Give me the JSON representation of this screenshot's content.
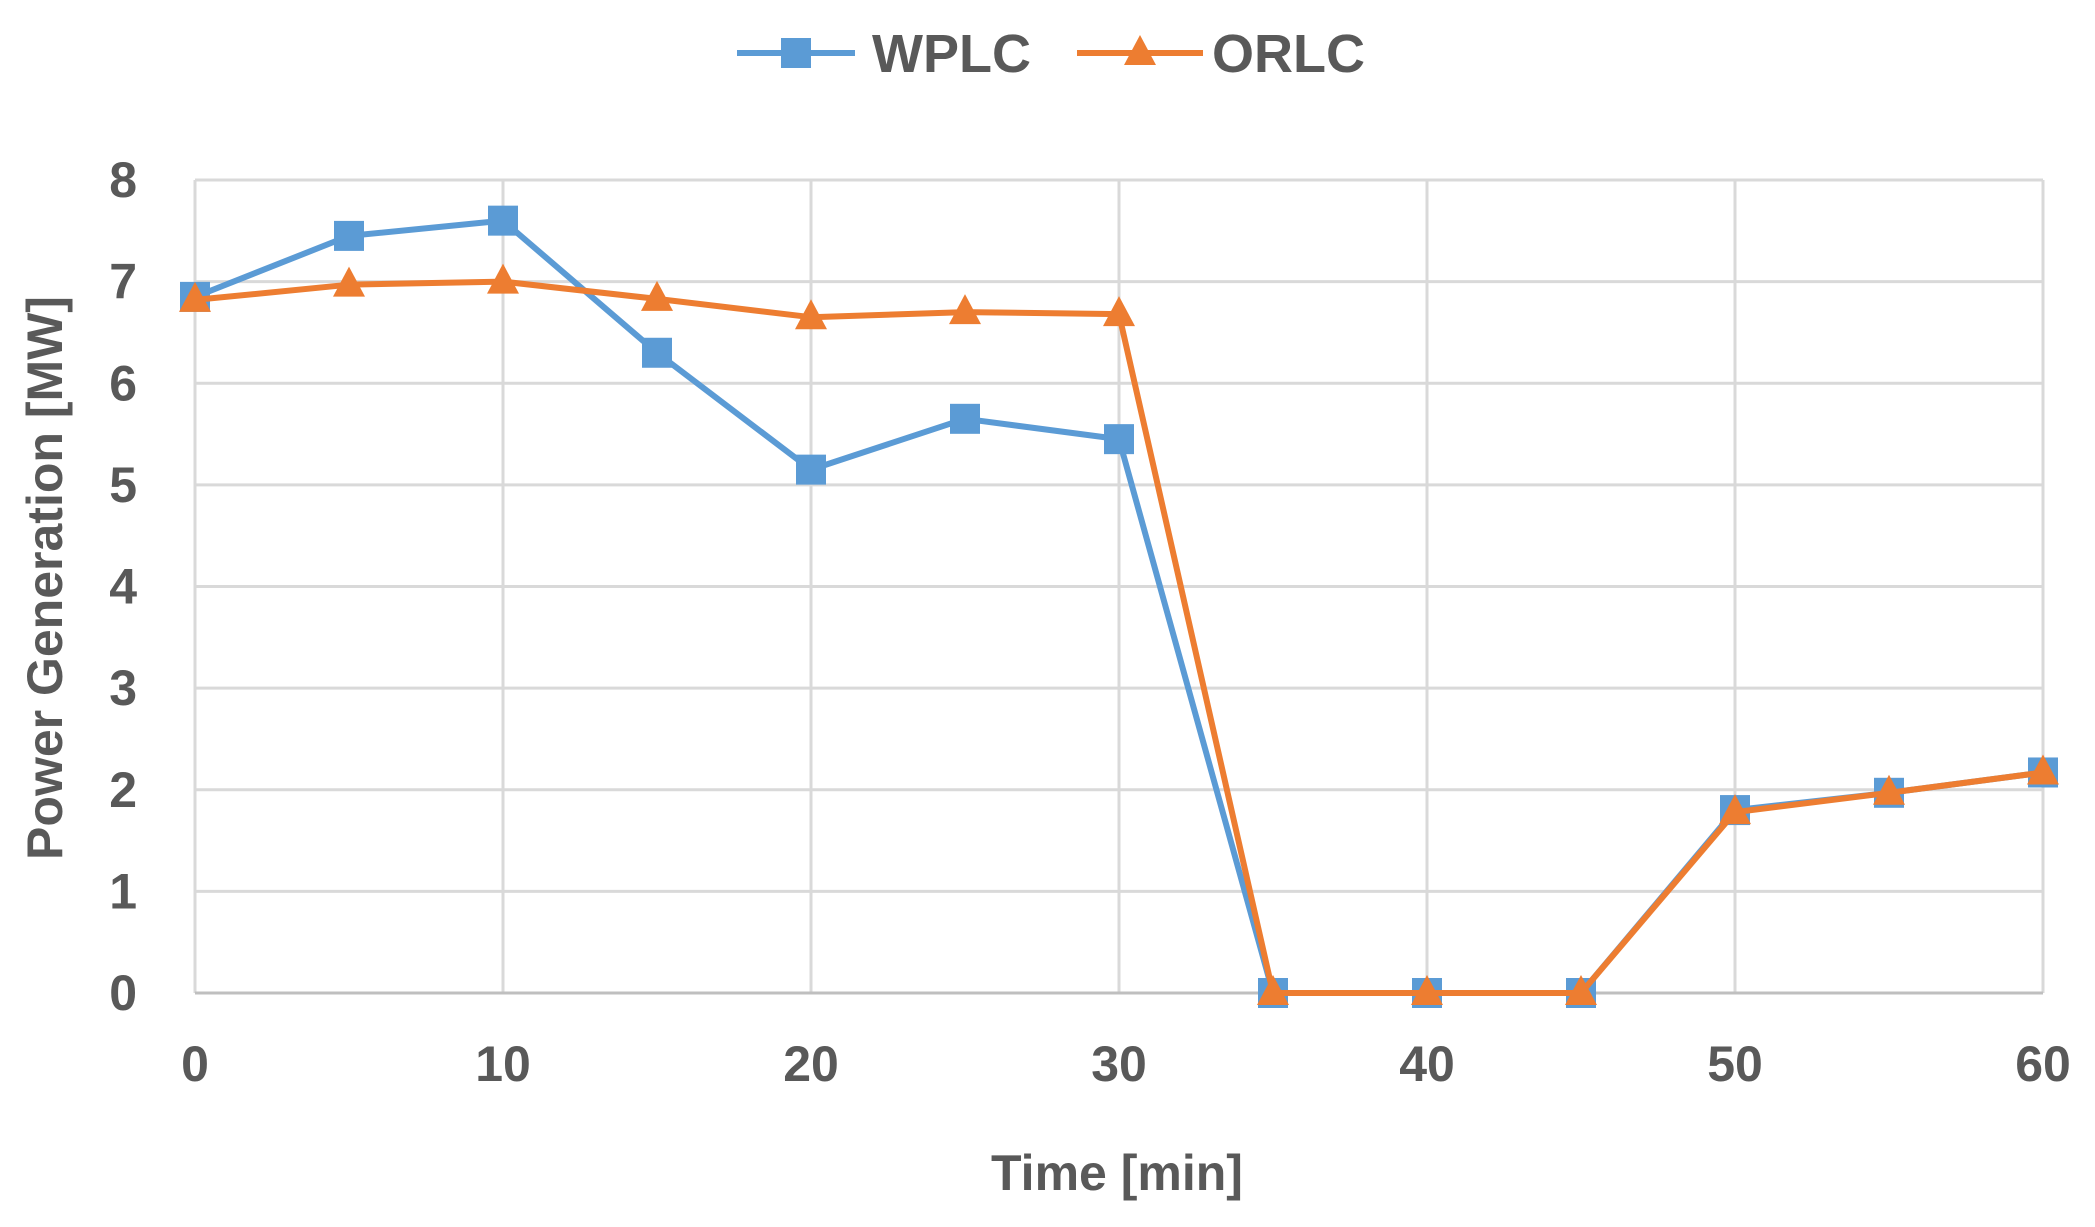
{
  "chart_data": {
    "type": "line",
    "title": "",
    "xlabel": "Time [min]",
    "ylabel": "Power Generation [MW]",
    "x": [
      0,
      5,
      10,
      15,
      20,
      25,
      30,
      35,
      40,
      45,
      50,
      55,
      60
    ],
    "xlim": [
      0,
      60
    ],
    "ylim": [
      0,
      8
    ],
    "xticks": [
      0,
      10,
      20,
      30,
      40,
      50,
      60
    ],
    "yticks": [
      0,
      1,
      2,
      3,
      4,
      5,
      6,
      7,
      8
    ],
    "grid": true,
    "legend_position": "top-center",
    "series": [
      {
        "name": "WPLC",
        "color": "#5B9BD5",
        "marker": "square",
        "values": [
          6.85,
          7.45,
          7.6,
          6.3,
          5.15,
          5.65,
          5.45,
          0,
          0,
          0,
          1.8,
          1.97,
          2.17
        ]
      },
      {
        "name": "ORLC",
        "color": "#ED7D31",
        "marker": "triangle",
        "values": [
          6.82,
          6.97,
          7.0,
          6.83,
          6.65,
          6.7,
          6.68,
          0,
          0,
          0,
          1.78,
          1.97,
          2.17
        ]
      }
    ]
  }
}
